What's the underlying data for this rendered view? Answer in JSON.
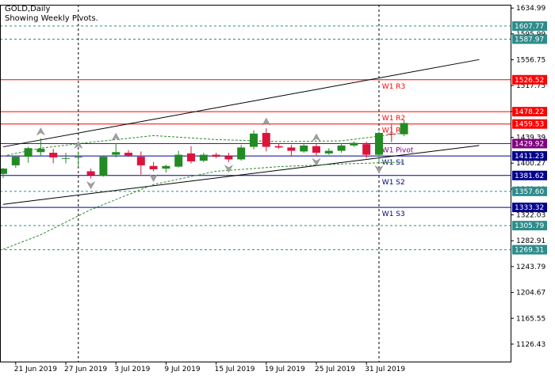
{
  "header": {
    "title": "GOLD,Daily",
    "subtitle": "Showing Weekly Pivots."
  },
  "chart_data": {
    "type": "candlestick",
    "symbol": "GOLD",
    "timeframe": "Daily",
    "ylim": [
      1100.0,
      1640.0
    ],
    "y_ticks": [
      "1634.99",
      "1595.99",
      "1556.75",
      "1517.75",
      "1478.50",
      "1439.39",
      "1400.27",
      "1361.00",
      "1322.03",
      "1282.91",
      "1243.79",
      "1204.67",
      "1165.55",
      "1126.43"
    ],
    "x_labels": [
      {
        "date": "21 Jun 2019",
        "label": "21 Jun 2019"
      },
      {
        "date": "27 Jun 2019",
        "label": "27 Jun 2019"
      },
      {
        "date": "3 Jul 2019",
        "label": "3 Jul 2019"
      },
      {
        "date": "9 Jul 2019",
        "label": "9 Jul 2019"
      },
      {
        "date": "15 Jul 2019",
        "label": "15 Jul 2019"
      },
      {
        "date": "19 Jul 2019",
        "label": "19 Jul 2019"
      },
      {
        "date": "25 Jul 2019",
        "label": "25 Jul 2019"
      },
      {
        "date": "31 Jul 2019",
        "label": "31 Jul 2019"
      }
    ],
    "candles": [
      {
        "date": "2019-06-20",
        "open": 1384,
        "high": 1393,
        "low": 1378,
        "close": 1392
      },
      {
        "date": "2019-06-21",
        "open": 1397,
        "high": 1412,
        "low": 1393,
        "close": 1410
      },
      {
        "date": "2019-06-24",
        "open": 1410,
        "high": 1425,
        "low": 1401,
        "close": 1423
      },
      {
        "date": "2019-06-25",
        "open": 1417,
        "high": 1438,
        "low": 1411,
        "close": 1422
      },
      {
        "date": "2019-06-26",
        "open": 1416,
        "high": 1422,
        "low": 1400,
        "close": 1409
      },
      {
        "date": "2019-06-27",
        "open": 1407,
        "high": 1416,
        "low": 1400,
        "close": 1408
      },
      {
        "date": "2019-06-28",
        "open": 1409,
        "high": 1418,
        "low": 1396,
        "close": 1410
      },
      {
        "date": "2019-07-01",
        "open": 1388,
        "high": 1392,
        "low": 1377,
        "close": 1382
      },
      {
        "date": "2019-07-02",
        "open": 1381,
        "high": 1412,
        "low": 1380,
        "close": 1410
      },
      {
        "date": "2019-07-03",
        "open": 1413,
        "high": 1430,
        "low": 1409,
        "close": 1417
      },
      {
        "date": "2019-07-04",
        "open": 1416,
        "high": 1420,
        "low": 1410,
        "close": 1412
      },
      {
        "date": "2019-07-05",
        "open": 1410,
        "high": 1418,
        "low": 1383,
        "close": 1397
      },
      {
        "date": "2019-07-08",
        "open": 1396,
        "high": 1402,
        "low": 1388,
        "close": 1391
      },
      {
        "date": "2019-07-09",
        "open": 1392,
        "high": 1398,
        "low": 1386,
        "close": 1396
      },
      {
        "date": "2019-07-10",
        "open": 1395,
        "high": 1419,
        "low": 1394,
        "close": 1413
      },
      {
        "date": "2019-07-11",
        "open": 1415,
        "high": 1426,
        "low": 1400,
        "close": 1403
      },
      {
        "date": "2019-07-12",
        "open": 1404,
        "high": 1416,
        "low": 1402,
        "close": 1413
      },
      {
        "date": "2019-07-15",
        "open": 1413,
        "high": 1416,
        "low": 1408,
        "close": 1410
      },
      {
        "date": "2019-07-16",
        "open": 1411,
        "high": 1416,
        "low": 1402,
        "close": 1406
      },
      {
        "date": "2019-07-17",
        "open": 1406,
        "high": 1428,
        "low": 1404,
        "close": 1424
      },
      {
        "date": "2019-07-18",
        "open": 1425,
        "high": 1450,
        "low": 1421,
        "close": 1445
      },
      {
        "date": "2019-07-19",
        "open": 1446,
        "high": 1453,
        "low": 1418,
        "close": 1425
      },
      {
        "date": "2019-07-22",
        "open": 1426,
        "high": 1430,
        "low": 1422,
        "close": 1424
      },
      {
        "date": "2019-07-23",
        "open": 1424,
        "high": 1428,
        "low": 1412,
        "close": 1419
      },
      {
        "date": "2019-07-24",
        "open": 1418,
        "high": 1429,
        "low": 1416,
        "close": 1427
      },
      {
        "date": "2019-07-25",
        "open": 1426,
        "high": 1429,
        "low": 1412,
        "close": 1416
      },
      {
        "date": "2019-07-26",
        "open": 1415,
        "high": 1423,
        "low": 1413,
        "close": 1419
      },
      {
        "date": "2019-07-29",
        "open": 1419,
        "high": 1430,
        "low": 1416,
        "close": 1427
      },
      {
        "date": "2019-07-30",
        "open": 1427,
        "high": 1433,
        "low": 1425,
        "close": 1431
      },
      {
        "date": "2019-07-31",
        "open": 1429,
        "high": 1433,
        "low": 1408,
        "close": 1413
      },
      {
        "date": "2019-08-01",
        "open": 1413,
        "high": 1448,
        "low": 1401,
        "close": 1446
      },
      {
        "date": "2019-08-02",
        "open": 1445,
        "high": 1460,
        "low": 1432,
        "close": 1444
      },
      {
        "date": "2019-08-05",
        "open": 1444,
        "high": 1465,
        "low": 1441,
        "close": 1461
      }
    ],
    "pivot_lines": [
      {
        "label": "W1 R3",
        "value": 1526.52,
        "color": "#ff0000"
      },
      {
        "label": "W1 R2",
        "value": 1478.22,
        "color": "#ff0000"
      },
      {
        "label": "W1 R1",
        "value": 1459.53,
        "color": "#ff0000"
      },
      {
        "label": "W1 Pivot",
        "value": 1429.92,
        "color": "#800080"
      },
      {
        "label": "W1 S1",
        "value": 1411.23,
        "color": "#00008b"
      },
      {
        "label": "W1 S2",
        "value": 1381.62,
        "color": "#00008b"
      },
      {
        "label": "W1 S3",
        "value": 1333.32,
        "color": "#00008b"
      }
    ],
    "level_lines": [
      {
        "value": 1607.77,
        "color": "#2e8b8b"
      },
      {
        "value": 1587.97,
        "color": "#2e8b8b"
      },
      {
        "value": 1357.6,
        "color": "#2e8b8b"
      },
      {
        "value": 1305.79,
        "color": "#2e8b8b"
      },
      {
        "value": 1269.31,
        "color": "#2e8b8b"
      }
    ],
    "price_tags": [
      {
        "text": "1607.77",
        "value": 1607.77,
        "color": "#2e8b8b"
      },
      {
        "text": "1587.97",
        "value": 1587.97,
        "color": "#2e8b8b"
      },
      {
        "text": "1526.52",
        "value": 1526.52,
        "color": "#ff0000"
      },
      {
        "text": "1478.22",
        "value": 1478.22,
        "color": "#ff0000"
      },
      {
        "text": "1459.53",
        "value": 1459.53,
        "color": "#ff0000"
      },
      {
        "text": "1429.92",
        "value": 1429.92,
        "color": "#800080"
      },
      {
        "text": "1411.23",
        "value": 1411.23,
        "color": "#00008b"
      },
      {
        "text": "1381.62",
        "value": 1381.62,
        "color": "#00008b"
      },
      {
        "text": "1357.60",
        "value": 1357.6,
        "color": "#2e8b8b"
      },
      {
        "text": "1333.32",
        "value": 1333.32,
        "color": "#00008b"
      },
      {
        "text": "1305.79",
        "value": 1305.79,
        "color": "#2e8b8b"
      },
      {
        "text": "1269.31",
        "value": 1269.31,
        "color": "#2e8b8b"
      }
    ],
    "trend_lines": [
      {
        "start": {
          "date": "2019-06-20",
          "value": 1425
        },
        "end": {
          "date": "2019-08-13",
          "value": 1557
        }
      },
      {
        "start": {
          "date": "2019-06-20",
          "value": 1338
        },
        "end": {
          "date": "2019-08-13",
          "value": 1427
        }
      }
    ],
    "envelope_upper": [
      {
        "date": "2019-06-20",
        "value": 1411
      },
      {
        "date": "2019-06-25",
        "value": 1423
      },
      {
        "date": "2019-07-01",
        "value": 1432
      },
      {
        "date": "2019-07-08",
        "value": 1442
      },
      {
        "date": "2019-07-15",
        "value": 1436
      },
      {
        "date": "2019-07-22",
        "value": 1433
      },
      {
        "date": "2019-07-29",
        "value": 1434
      },
      {
        "date": "2019-08-05",
        "value": 1446
      }
    ],
    "envelope_lower": [
      {
        "date": "2019-06-20",
        "value": 1270
      },
      {
        "date": "2019-06-25",
        "value": 1292
      },
      {
        "date": "2019-07-01",
        "value": 1330
      },
      {
        "date": "2019-07-08",
        "value": 1368
      },
      {
        "date": "2019-07-15",
        "value": 1388
      },
      {
        "date": "2019-07-22",
        "value": 1395
      },
      {
        "date": "2019-07-29",
        "value": 1399
      },
      {
        "date": "2019-08-05",
        "value": 1402
      }
    ],
    "vertical_dashed_dates": [
      "2019-06-28",
      "2019-08-01"
    ],
    "fractal_markers": [
      {
        "date": "2019-06-25",
        "value": 1438,
        "direction": "up"
      },
      {
        "date": "2019-06-28",
        "value": 1418,
        "direction": "up"
      },
      {
        "date": "2019-07-01",
        "value": 1377,
        "direction": "down"
      },
      {
        "date": "2019-07-03",
        "value": 1430,
        "direction": "up"
      },
      {
        "date": "2019-07-08",
        "value": 1388,
        "direction": "down"
      },
      {
        "date": "2019-07-16",
        "value": 1402,
        "direction": "down"
      },
      {
        "date": "2019-07-19",
        "value": 1453,
        "direction": "up"
      },
      {
        "date": "2019-07-25",
        "value": 1429,
        "direction": "up"
      },
      {
        "date": "2019-07-25",
        "value": 1412,
        "direction": "down"
      },
      {
        "date": "2019-08-01",
        "value": 1401,
        "direction": "down"
      }
    ],
    "colors": {
      "bull": "#228b22",
      "bear": "#dc143c",
      "grid": "#000000"
    }
  }
}
